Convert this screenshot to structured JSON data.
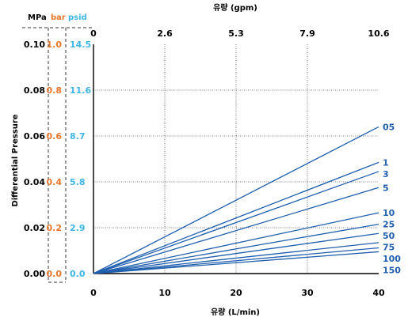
{
  "chart_data": {
    "type": "line",
    "top_axis_title": "유량 (gpm)",
    "top_ticks": [
      "0",
      "2.6",
      "5.3",
      "7.9",
      "10.6"
    ],
    "xlabel": "유량 (L/min)",
    "x_ticks": [
      0,
      10,
      20,
      30,
      40
    ],
    "xlim": [
      0,
      40
    ],
    "ylabel": "Differential Pressure",
    "ylim": [
      0,
      0.1
    ],
    "grid": true,
    "y_axes": [
      {
        "unit": "MPa",
        "color": "#000000",
        "ticks": [
          "0.00",
          "0.02",
          "0.04",
          "0.06",
          "0.08",
          "0.10"
        ]
      },
      {
        "unit": "bar",
        "color": "#e8762b",
        "ticks": [
          "0.0",
          "0.2",
          "0.4",
          "0.6",
          "0.8",
          "1.0"
        ]
      },
      {
        "unit": "psid",
        "color": "#3fb6e6",
        "ticks": [
          "0.0",
          "2.9",
          "5.8",
          "8.7",
          "11.6",
          "14.5"
        ]
      }
    ],
    "line_color": "#1f5fae",
    "series": [
      {
        "name": "05",
        "x": [
          0,
          40
        ],
        "y": [
          0,
          0.064
        ]
      },
      {
        "name": "1",
        "x": [
          0,
          40
        ],
        "y": [
          0,
          0.0485
        ]
      },
      {
        "name": "3",
        "x": [
          0,
          40
        ],
        "y": [
          0,
          0.0445
        ]
      },
      {
        "name": "5",
        "x": [
          0,
          40
        ],
        "y": [
          0,
          0.0375
        ]
      },
      {
        "name": "10",
        "x": [
          0,
          40
        ],
        "y": [
          0,
          0.0265
        ]
      },
      {
        "name": "25",
        "x": [
          0,
          40
        ],
        "y": [
          0,
          0.0215
        ]
      },
      {
        "name": "50",
        "x": [
          0,
          40
        ],
        "y": [
          0,
          0.0175
        ]
      },
      {
        "name": "75",
        "x": [
          0,
          40
        ],
        "y": [
          0,
          0.0135
        ]
      },
      {
        "name": "100",
        "x": [
          0,
          40
        ],
        "y": [
          0,
          0.0112
        ]
      },
      {
        "name": "150",
        "x": [
          0,
          40
        ],
        "y": [
          0,
          0.0095
        ]
      }
    ]
  }
}
